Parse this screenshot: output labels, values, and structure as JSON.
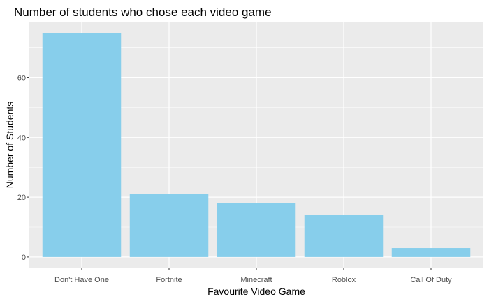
{
  "chart_data": {
    "type": "bar",
    "title": "Number of students who chose each video game",
    "xlabel": "Favourite Video Game",
    "ylabel": "Number of Students",
    "categories": [
      "Don't Have One",
      "Fortnite",
      "Minecraft",
      "Roblox",
      "Call Of Duty"
    ],
    "values": [
      75,
      21,
      18,
      14,
      3
    ],
    "ylim": [
      -3.75,
      78.75
    ],
    "yticks": [
      0,
      20,
      40,
      60
    ],
    "grid": true,
    "legend": "none",
    "colors": {
      "bar": "#87CEEB",
      "panel": "#EBEBEB",
      "grid": "#FFFFFF",
      "tick": "#333333"
    }
  }
}
